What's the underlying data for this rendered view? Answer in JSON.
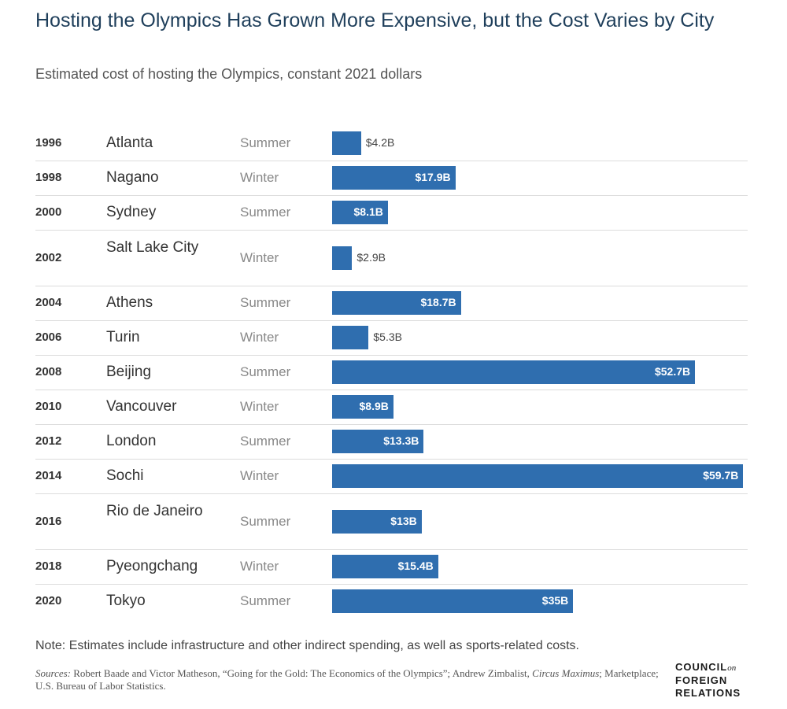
{
  "title": "Hosting the Olympics Has Grown More Expensive, but the Cost Varies by City",
  "subtitle": "Estimated cost of hosting the Olympics, constant 2021 dollars",
  "note": "Note: Estimates include infrastructure and other indirect spending, as well as sports-related costs.",
  "sources": {
    "label": "Sources:",
    "text_1": " Robert Baade and Victor Matheson, “Going for the Gold: The Economics of the Olympics”; Andrew Zimbalist, ",
    "book": "Circus Maximus",
    "text_2": "; Marketplace; U.S. Bureau of Labor Statistics."
  },
  "logo": {
    "line1": "COUNCIL",
    "on": "on",
    "line2": "FOREIGN",
    "line3": "RELATIONS"
  },
  "colors": {
    "bar": "#2f6eaf",
    "title": "#1f3f5b"
  },
  "chart_data": {
    "type": "bar",
    "orientation": "horizontal",
    "units": "billion USD (constant 2021 dollars)",
    "rows": [
      {
        "year": "1996",
        "city": "Atlanta",
        "season": "Summer",
        "value": 4.2,
        "label": "$4.2B"
      },
      {
        "year": "1998",
        "city": "Nagano",
        "season": "Winter",
        "value": 17.9,
        "label": "$17.9B"
      },
      {
        "year": "2000",
        "city": "Sydney",
        "season": "Summer",
        "value": 8.1,
        "label": "$8.1B"
      },
      {
        "year": "2002",
        "city": "Salt Lake City",
        "season": "Winter",
        "value": 2.9,
        "label": "$2.9B"
      },
      {
        "year": "2004",
        "city": "Athens",
        "season": "Summer",
        "value": 18.7,
        "label": "$18.7B"
      },
      {
        "year": "2006",
        "city": "Turin",
        "season": "Winter",
        "value": 5.3,
        "label": "$5.3B"
      },
      {
        "year": "2008",
        "city": "Beijing",
        "season": "Summer",
        "value": 52.7,
        "label": "$52.7B"
      },
      {
        "year": "2010",
        "city": "Vancouver",
        "season": "Winter",
        "value": 8.9,
        "label": "$8.9B"
      },
      {
        "year": "2012",
        "city": "London",
        "season": "Summer",
        "value": 13.3,
        "label": "$13.3B"
      },
      {
        "year": "2014",
        "city": "Sochi",
        "season": "Winter",
        "value": 59.7,
        "label": "$59.7B"
      },
      {
        "year": "2016",
        "city": "Rio de Janeiro",
        "season": "Summer",
        "value": 13,
        "label": "$13B"
      },
      {
        "year": "2018",
        "city": "Pyeongchang",
        "season": "Winter",
        "value": 15.4,
        "label": "$15.4B"
      },
      {
        "year": "2020",
        "city": "Tokyo",
        "season": "Summer",
        "value": 35,
        "label": "$35B"
      }
    ]
  }
}
